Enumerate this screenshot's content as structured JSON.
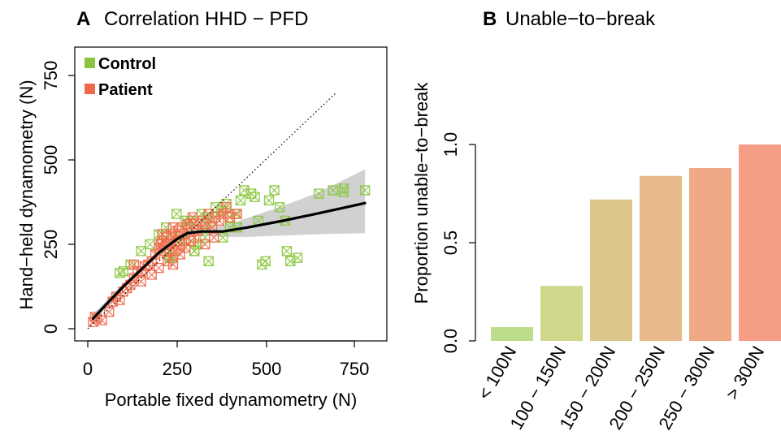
{
  "colors": {
    "control": "#8cc63f",
    "patient": "#ef6a4c",
    "fit_line": "#000000",
    "ribbon": "#bdbdbd"
  },
  "panel_a": {
    "letter": "A",
    "title": "Correlation HHD − PFD",
    "xlabel": "Portable fixed dynamometry (N)",
    "ylabel": "Hand−held dynamometry (N)",
    "xticks": [
      "0",
      "250",
      "500",
      "750"
    ],
    "yticks": [
      "0",
      "250",
      "500",
      "750"
    ],
    "legend": [
      {
        "label": "Control",
        "color_key": "control"
      },
      {
        "label": "Patient",
        "color_key": "patient"
      }
    ]
  },
  "panel_b": {
    "letter": "B",
    "title": "Unable−to−break",
    "ylabel": "Proportion unable−to−break",
    "yticks": [
      "0.0",
      "0.5",
      "1.0"
    ]
  },
  "chart_data": [
    {
      "type": "scatter",
      "title": "Correlation HHD − PFD",
      "xlabel": "Portable fixed dynamometry (N)",
      "ylabel": "Hand−held dynamometry (N)",
      "xlim": [
        -10,
        800
      ],
      "ylim": [
        -10,
        830
      ],
      "grid": false,
      "legend_position": "top-left",
      "identity_line": {
        "x": [
          0,
          700
        ],
        "y": [
          0,
          700
        ],
        "style": "dotted"
      },
      "fit_line": {
        "x": [
          15,
          50,
          100,
          150,
          200,
          250,
          280,
          320,
          380,
          450,
          550,
          650,
          780
        ],
        "y": [
          30,
          70,
          125,
          175,
          225,
          265,
          283,
          288,
          288,
          300,
          320,
          342,
          372
        ]
      },
      "ribbon": {
        "x": [
          15,
          50,
          100,
          150,
          200,
          250,
          280,
          320,
          380,
          450,
          550,
          650,
          780
        ],
        "lower": [
          15,
          60,
          115,
          167,
          215,
          255,
          272,
          275,
          272,
          272,
          276,
          280,
          283
        ],
        "upper": [
          45,
          80,
          135,
          183,
          235,
          275,
          294,
          301,
          305,
          328,
          364,
          404,
          472
        ]
      },
      "series": [
        {
          "name": "Control",
          "color_key": "control",
          "x": [
            90,
            100,
            120,
            150,
            175,
            200,
            210,
            220,
            225,
            230,
            240,
            250,
            260,
            275,
            285,
            300,
            310,
            320,
            335,
            350,
            360,
            375,
            390,
            400,
            415,
            430,
            440,
            460,
            470,
            480,
            490,
            500,
            510,
            525,
            540,
            555,
            570,
            590,
            240,
            300,
            340,
            420,
            330,
            650,
            690,
            720,
            720,
            780,
            330,
            290,
            270,
            380,
            400,
            560
          ],
          "y": [
            165,
            170,
            190,
            230,
            250,
            280,
            260,
            300,
            220,
            210,
            270,
            340,
            260,
            320,
            300,
            230,
            250,
            340,
            330,
            320,
            360,
            350,
            370,
            300,
            340,
            380,
            410,
            400,
            390,
            320,
            190,
            200,
            380,
            410,
            360,
            320,
            200,
            210,
            210,
            230,
            200,
            300,
            270,
            400,
            410,
            415,
            405,
            410,
            300,
            320,
            260,
            270,
            330,
            230
          ]
        },
        {
          "name": "Patient",
          "color_key": "patient",
          "x": [
            15,
            20,
            25,
            40,
            60,
            70,
            80,
            90,
            100,
            110,
            120,
            130,
            140,
            150,
            160,
            170,
            180,
            190,
            200,
            205,
            210,
            215,
            220,
            225,
            230,
            235,
            240,
            245,
            250,
            255,
            260,
            265,
            270,
            275,
            280,
            290,
            295,
            300,
            310,
            320,
            330,
            340,
            350,
            360,
            370,
            380,
            390,
            400,
            420,
            200,
            180,
            150,
            130,
            240,
            260,
            210,
            230,
            300,
            330,
            355
          ],
          "y": [
            20,
            35,
            30,
            25,
            50,
            80,
            95,
            85,
            110,
            120,
            130,
            150,
            170,
            170,
            185,
            190,
            200,
            220,
            240,
            250,
            260,
            230,
            270,
            200,
            250,
            280,
            300,
            230,
            260,
            290,
            220,
            300,
            280,
            240,
            310,
            260,
            330,
            270,
            290,
            320,
            310,
            340,
            300,
            330,
            320,
            340,
            360,
            330,
            340,
            180,
            160,
            140,
            190,
            190,
            250,
            280,
            230,
            310,
            250,
            270
          ]
        }
      ]
    },
    {
      "type": "bar",
      "title": "Unable−to−break",
      "xlabel": "",
      "ylabel": "Proportion unable−to−break",
      "ylim": [
        0,
        1.0
      ],
      "grid": false,
      "categories": [
        "< 100N",
        "100 − 150N",
        "150 − 200N",
        "200 − 250N",
        "250 − 300N",
        "> 300N"
      ],
      "values": [
        0.07,
        0.28,
        0.72,
        0.84,
        0.88,
        1.0
      ],
      "bar_colors": [
        "#bddd8c",
        "#cfd88a",
        "#dcc68a",
        "#e6b88a",
        "#efaa85",
        "#f59d87"
      ]
    }
  ]
}
